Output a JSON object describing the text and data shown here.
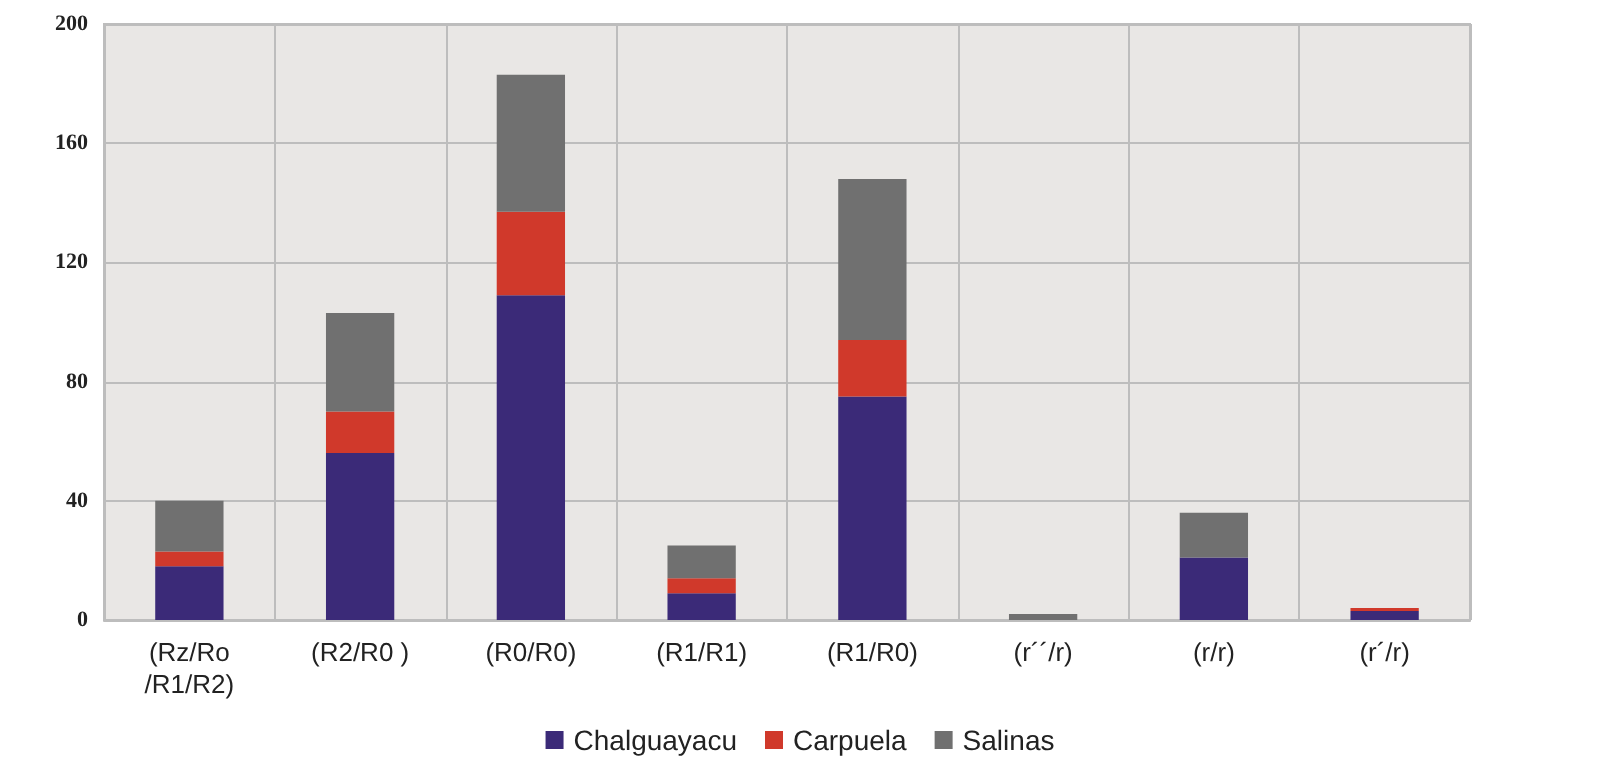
{
  "chart_data": {
    "type": "bar",
    "stacked": true,
    "categories": [
      "(Rz/Ro\n/R1/R2)",
      "(R2/R0 )",
      "(R0/R0)",
      "(R1/R1)",
      "(R1/R0)",
      "(r´´/r)",
      "(r/r)",
      "(r´/r)"
    ],
    "series": [
      {
        "name": "Chalguayacu",
        "color": "#3b2a78",
        "values": [
          18,
          56,
          109,
          9,
          75,
          0,
          21,
          3
        ]
      },
      {
        "name": "Carpuela",
        "color": "#d0392b",
        "values": [
          5,
          14,
          28,
          5,
          19,
          0,
          0,
          1
        ]
      },
      {
        "name": "Salinas",
        "color": "#707070",
        "values": [
          17,
          33,
          46,
          11,
          54,
          2,
          15,
          0
        ]
      }
    ],
    "ylim": [
      0,
      200
    ],
    "yticks": [
      0,
      40,
      80,
      120,
      160,
      200
    ],
    "grid": true,
    "legend": "bottom"
  }
}
